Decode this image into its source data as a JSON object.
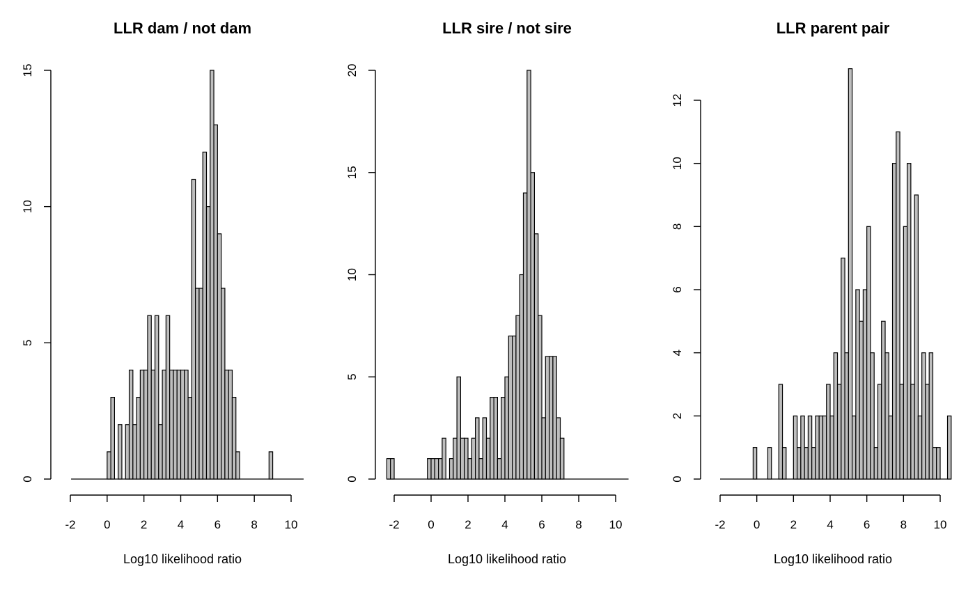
{
  "chart_data": [
    {
      "type": "bar",
      "title": "LLR dam / not dam",
      "xlabel": "Log10 likelihood ratio",
      "ylabel": "",
      "bar_color": "#bebebe",
      "bin_width": 0.2,
      "xlim": [
        -2,
        10
      ],
      "ylim": [
        0,
        15
      ],
      "x_ticks": [
        -2,
        0,
        2,
        4,
        6,
        8,
        10
      ],
      "x_tick_labels": [
        "-2",
        "0",
        "2",
        "4",
        "6",
        "8",
        "10"
      ],
      "y_ticks": [
        0,
        5,
        10,
        15
      ],
      "y_tick_labels": [
        "0",
        "5",
        "10",
        "15"
      ],
      "bins": [
        {
          "x": 0.0,
          "y": 1
        },
        {
          "x": 0.2,
          "y": 3
        },
        {
          "x": 0.4,
          "y": 0
        },
        {
          "x": 0.6,
          "y": 2
        },
        {
          "x": 0.8,
          "y": 0
        },
        {
          "x": 1.0,
          "y": 2
        },
        {
          "x": 1.2,
          "y": 4
        },
        {
          "x": 1.4,
          "y": 2
        },
        {
          "x": 1.6,
          "y": 3
        },
        {
          "x": 1.8,
          "y": 4
        },
        {
          "x": 2.0,
          "y": 4
        },
        {
          "x": 2.2,
          "y": 6
        },
        {
          "x": 2.4,
          "y": 4
        },
        {
          "x": 2.6,
          "y": 6
        },
        {
          "x": 2.8,
          "y": 2
        },
        {
          "x": 3.0,
          "y": 4
        },
        {
          "x": 3.2,
          "y": 6
        },
        {
          "x": 3.4,
          "y": 4
        },
        {
          "x": 3.6,
          "y": 4
        },
        {
          "x": 3.8,
          "y": 4
        },
        {
          "x": 4.0,
          "y": 4
        },
        {
          "x": 4.2,
          "y": 4
        },
        {
          "x": 4.4,
          "y": 3
        },
        {
          "x": 4.6,
          "y": 11
        },
        {
          "x": 4.8,
          "y": 7
        },
        {
          "x": 5.0,
          "y": 7
        },
        {
          "x": 5.2,
          "y": 12
        },
        {
          "x": 5.4,
          "y": 10
        },
        {
          "x": 5.6,
          "y": 15
        },
        {
          "x": 5.8,
          "y": 13
        },
        {
          "x": 6.0,
          "y": 9
        },
        {
          "x": 6.2,
          "y": 7
        },
        {
          "x": 6.4,
          "y": 4
        },
        {
          "x": 6.6,
          "y": 4
        },
        {
          "x": 6.8,
          "y": 3
        },
        {
          "x": 7.0,
          "y": 1
        },
        {
          "x": 8.8,
          "y": 1
        }
      ]
    },
    {
      "type": "bar",
      "title": "LLR sire / not sire",
      "xlabel": "Log10 likelihood ratio",
      "ylabel": "",
      "bar_color": "#bebebe",
      "bin_width": 0.2,
      "xlim": [
        -2,
        10
      ],
      "ylim": [
        0,
        20
      ],
      "x_ticks": [
        -2,
        0,
        2,
        4,
        6,
        8,
        10
      ],
      "x_tick_labels": [
        "-2",
        "0",
        "2",
        "4",
        "6",
        "8",
        "10"
      ],
      "y_ticks": [
        0,
        5,
        10,
        15,
        20
      ],
      "y_tick_labels": [
        "0",
        "5",
        "10",
        "15",
        "20"
      ],
      "bins": [
        {
          "x": -2.4,
          "y": 1
        },
        {
          "x": -2.2,
          "y": 1
        },
        {
          "x": -0.2,
          "y": 1
        },
        {
          "x": 0.0,
          "y": 1
        },
        {
          "x": 0.2,
          "y": 1
        },
        {
          "x": 0.4,
          "y": 1
        },
        {
          "x": 0.6,
          "y": 2
        },
        {
          "x": 0.8,
          "y": 0
        },
        {
          "x": 1.0,
          "y": 1
        },
        {
          "x": 1.2,
          "y": 2
        },
        {
          "x": 1.4,
          "y": 5
        },
        {
          "x": 1.6,
          "y": 2
        },
        {
          "x": 1.8,
          "y": 2
        },
        {
          "x": 2.0,
          "y": 1
        },
        {
          "x": 2.2,
          "y": 2
        },
        {
          "x": 2.4,
          "y": 3
        },
        {
          "x": 2.6,
          "y": 1
        },
        {
          "x": 2.8,
          "y": 3
        },
        {
          "x": 3.0,
          "y": 2
        },
        {
          "x": 3.2,
          "y": 4
        },
        {
          "x": 3.4,
          "y": 4
        },
        {
          "x": 3.6,
          "y": 1
        },
        {
          "x": 3.8,
          "y": 4
        },
        {
          "x": 4.0,
          "y": 5
        },
        {
          "x": 4.2,
          "y": 7
        },
        {
          "x": 4.4,
          "y": 7
        },
        {
          "x": 4.6,
          "y": 8
        },
        {
          "x": 4.8,
          "y": 10
        },
        {
          "x": 5.0,
          "y": 14
        },
        {
          "x": 5.2,
          "y": 20
        },
        {
          "x": 5.4,
          "y": 15
        },
        {
          "x": 5.6,
          "y": 12
        },
        {
          "x": 5.8,
          "y": 8
        },
        {
          "x": 6.0,
          "y": 3
        },
        {
          "x": 6.2,
          "y": 6
        },
        {
          "x": 6.4,
          "y": 6
        },
        {
          "x": 6.6,
          "y": 6
        },
        {
          "x": 6.8,
          "y": 3
        },
        {
          "x": 7.0,
          "y": 2
        }
      ]
    },
    {
      "type": "bar",
      "title": "LLR parent pair",
      "xlabel": "Log10 likelihood ratio",
      "ylabel": "",
      "bar_color": "#bebebe",
      "bin_width": 0.2,
      "xlim": [
        -2,
        10.4
      ],
      "ylim": [
        0,
        13
      ],
      "x_ticks": [
        -2,
        0,
        2,
        4,
        6,
        8,
        10
      ],
      "x_tick_labels": [
        "-2",
        "0",
        "2",
        "4",
        "6",
        "8",
        "10"
      ],
      "y_ticks": [
        0,
        2,
        4,
        6,
        8,
        10,
        12
      ],
      "y_tick_labels": [
        "0",
        "2",
        "4",
        "6",
        "8",
        "10",
        "12"
      ],
      "bins": [
        {
          "x": -0.2,
          "y": 1
        },
        {
          "x": 0.6,
          "y": 1
        },
        {
          "x": 1.2,
          "y": 3
        },
        {
          "x": 1.4,
          "y": 1
        },
        {
          "x": 2.0,
          "y": 2
        },
        {
          "x": 2.2,
          "y": 1
        },
        {
          "x": 2.4,
          "y": 2
        },
        {
          "x": 2.6,
          "y": 1
        },
        {
          "x": 2.8,
          "y": 2
        },
        {
          "x": 3.0,
          "y": 1
        },
        {
          "x": 3.2,
          "y": 2
        },
        {
          "x": 3.4,
          "y": 2
        },
        {
          "x": 3.6,
          "y": 2
        },
        {
          "x": 3.8,
          "y": 3
        },
        {
          "x": 4.0,
          "y": 2
        },
        {
          "x": 4.2,
          "y": 4
        },
        {
          "x": 4.4,
          "y": 3
        },
        {
          "x": 4.6,
          "y": 7
        },
        {
          "x": 4.8,
          "y": 4
        },
        {
          "x": 5.0,
          "y": 13
        },
        {
          "x": 5.2,
          "y": 2
        },
        {
          "x": 5.4,
          "y": 6
        },
        {
          "x": 5.6,
          "y": 5
        },
        {
          "x": 5.8,
          "y": 6
        },
        {
          "x": 6.0,
          "y": 8
        },
        {
          "x": 6.2,
          "y": 4
        },
        {
          "x": 6.4,
          "y": 1
        },
        {
          "x": 6.6,
          "y": 3
        },
        {
          "x": 6.8,
          "y": 5
        },
        {
          "x": 7.0,
          "y": 4
        },
        {
          "x": 7.2,
          "y": 2
        },
        {
          "x": 7.4,
          "y": 10
        },
        {
          "x": 7.6,
          "y": 11
        },
        {
          "x": 7.8,
          "y": 3
        },
        {
          "x": 8.0,
          "y": 8
        },
        {
          "x": 8.2,
          "y": 10
        },
        {
          "x": 8.4,
          "y": 3
        },
        {
          "x": 8.6,
          "y": 9
        },
        {
          "x": 8.8,
          "y": 2
        },
        {
          "x": 9.0,
          "y": 4
        },
        {
          "x": 9.2,
          "y": 3
        },
        {
          "x": 9.4,
          "y": 4
        },
        {
          "x": 9.6,
          "y": 1
        },
        {
          "x": 9.8,
          "y": 1
        },
        {
          "x": 10.4,
          "y": 2
        }
      ]
    }
  ]
}
